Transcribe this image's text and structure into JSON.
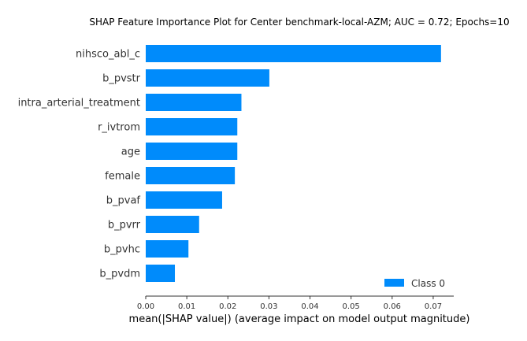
{
  "chart_data": {
    "type": "bar",
    "orientation": "horizontal",
    "title": "SHAP Feature Importance Plot for Center benchmark-local-AZM; AUC = 0.72; Epochs=10",
    "categories": [
      "nihsco_abl_c",
      "b_pvstr",
      "intra_arterial_treatment",
      "r_ivtrom",
      "age",
      "female",
      "b_pvaf",
      "b_pvrr",
      "b_pvhc",
      "b_pvdm"
    ],
    "series": [
      {
        "name": "Class 0",
        "color": "#008bfb",
        "values": [
          0.0719,
          0.0301,
          0.0233,
          0.0223,
          0.0223,
          0.0217,
          0.0186,
          0.013,
          0.0104,
          0.0071
        ]
      }
    ],
    "xlabel": "mean(|SHAP value|) (average impact on model output magnitude)",
    "ylabel": "",
    "xlim": [
      0,
      0.075
    ],
    "xticks": [
      0,
      0.01,
      0.02,
      0.03,
      0.04,
      0.05,
      0.06,
      0.07
    ],
    "xtick_labels": [
      "0.00",
      "0.01",
      "0.02",
      "0.03",
      "0.04",
      "0.05",
      "0.06",
      "0.07"
    ],
    "grid": false,
    "legend_position": "bottom-right"
  }
}
